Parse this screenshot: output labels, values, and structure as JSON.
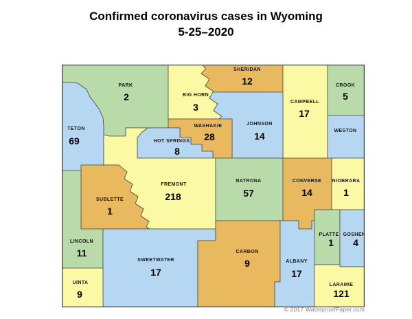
{
  "title": {
    "line1": "Confirmed coronavirus cases in Wyoming",
    "line2": "5-25–2020"
  },
  "map": {
    "palette": {
      "green": "#b9daa9",
      "yellow": "#fcf9a4",
      "blue": "#b5d7f1",
      "orange": "#e9b95f",
      "border": "#4d4d4d"
    },
    "counties": [
      {
        "id": "park",
        "name": "PARK",
        "cases": "2",
        "color": "green"
      },
      {
        "id": "teton",
        "name": "TETON",
        "cases": "69",
        "color": "blue"
      },
      {
        "id": "big-horn",
        "name": "BIG HORN",
        "cases": "3",
        "color": "yellow"
      },
      {
        "id": "sheridan",
        "name": "SHERIDAN",
        "cases": "12",
        "color": "orange"
      },
      {
        "id": "campbell",
        "name": "CAMPBELL",
        "cases": "17",
        "color": "yellow"
      },
      {
        "id": "crook",
        "name": "CROOK",
        "cases": "5",
        "color": "green"
      },
      {
        "id": "johnson",
        "name": "JOHNSON",
        "cases": "14",
        "color": "blue"
      },
      {
        "id": "weston",
        "name": "WESTON",
        "cases": "",
        "color": "blue"
      },
      {
        "id": "washakie",
        "name": "WASHAKIE",
        "cases": "28",
        "color": "orange"
      },
      {
        "id": "hot-springs",
        "name": "HOT SPRINGS",
        "cases": "8",
        "color": "blue"
      },
      {
        "id": "fremont",
        "name": "FREMONT",
        "cases": "218",
        "color": "yellow"
      },
      {
        "id": "sublette",
        "name": "SUBLETTE",
        "cases": "1",
        "color": "orange"
      },
      {
        "id": "natrona",
        "name": "NATRONA",
        "cases": "57",
        "color": "green"
      },
      {
        "id": "converse",
        "name": "CONVERSE",
        "cases": "14",
        "color": "orange"
      },
      {
        "id": "niobrara",
        "name": "NIOBRARA",
        "cases": "1",
        "color": "yellow"
      },
      {
        "id": "lincoln",
        "name": "LINCOLN",
        "cases": "11",
        "color": "green"
      },
      {
        "id": "sublette2",
        "name": "",
        "cases": "",
        "color": "orange"
      },
      {
        "id": "sweetwater",
        "name": "SWEETWATER",
        "cases": "17",
        "color": "blue"
      },
      {
        "id": "uinta",
        "name": "UINTA",
        "cases": "9",
        "color": "yellow"
      },
      {
        "id": "carbon",
        "name": "CARBON",
        "cases": "9",
        "color": "orange"
      },
      {
        "id": "albany",
        "name": "ALBANY",
        "cases": "17",
        "color": "blue"
      },
      {
        "id": "platte",
        "name": "PLATTE",
        "cases": "1",
        "color": "green"
      },
      {
        "id": "goshen",
        "name": "GOSHEN",
        "cases": "4",
        "color": "blue"
      },
      {
        "id": "laramie",
        "name": "LARAMIE",
        "cases": "121",
        "color": "yellow"
      }
    ]
  },
  "footer": {
    "copyright": "© 2017 WaterproofPaper.com"
  }
}
